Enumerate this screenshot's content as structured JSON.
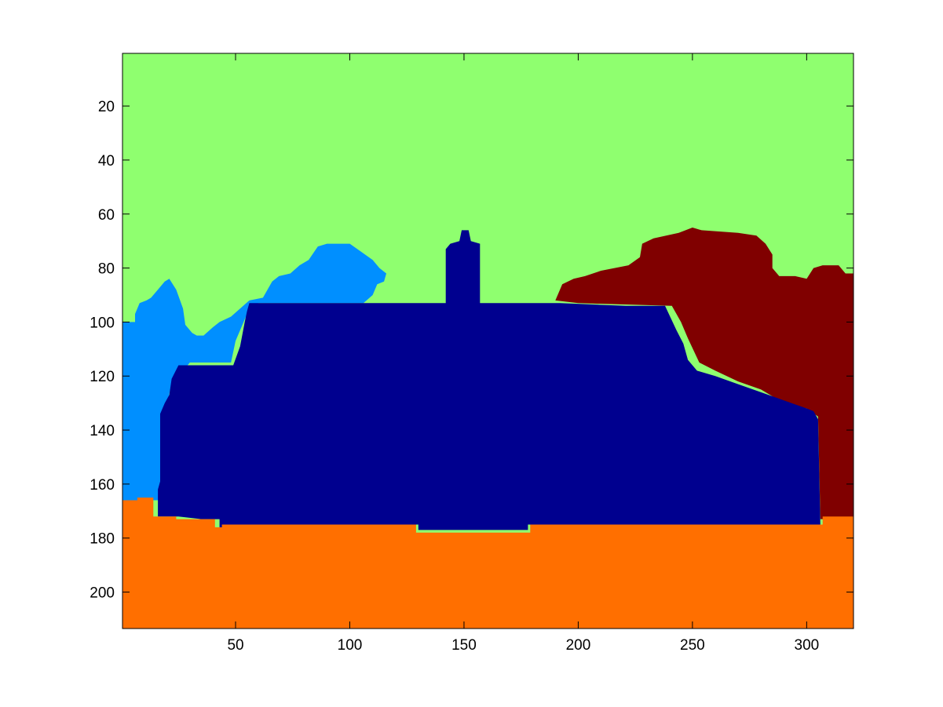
{
  "chart_data": {
    "type": "heatmap",
    "title": "",
    "xlabel": "",
    "ylabel": "",
    "xlim": [
      0.5,
      320.5
    ],
    "ylim": [
      0.5,
      213.5
    ],
    "y_reversed": true,
    "grid": false,
    "x_ticks": [
      50,
      100,
      150,
      200,
      250,
      300
    ],
    "y_ticks": [
      20,
      40,
      60,
      80,
      100,
      120,
      140,
      160,
      180,
      200
    ],
    "class_colors": {
      "sky": "#8FFF6F",
      "tree-left": "#008FFF",
      "building": "#00008F",
      "tree-right": "#800000",
      "ground": "#FF6F00"
    },
    "regions": [
      {
        "class": "sky",
        "polygon": [
          [
            0.5,
            0.5
          ],
          [
            320.5,
            0.5
          ],
          [
            320.5,
            213.5
          ],
          [
            0.5,
            213.5
          ]
        ]
      },
      {
        "class": "tree-left",
        "polygon": [
          [
            0.5,
            100
          ],
          [
            6,
            100
          ],
          [
            6,
            97
          ],
          [
            8,
            93
          ],
          [
            11,
            92
          ],
          [
            13,
            91
          ],
          [
            16,
            88
          ],
          [
            19,
            85
          ],
          [
            21,
            84
          ],
          [
            24,
            88
          ],
          [
            27,
            95
          ],
          [
            28,
            101
          ],
          [
            31,
            104
          ],
          [
            33,
            105
          ],
          [
            36,
            105
          ],
          [
            40,
            102
          ],
          [
            43,
            100
          ],
          [
            48,
            98
          ],
          [
            52,
            95
          ],
          [
            56,
            92
          ],
          [
            62,
            91
          ],
          [
            64,
            88
          ],
          [
            66,
            85
          ],
          [
            69,
            83
          ],
          [
            74,
            82
          ],
          [
            78,
            79
          ],
          [
            82,
            77
          ],
          [
            86,
            72
          ],
          [
            90,
            71
          ],
          [
            100,
            71
          ],
          [
            105,
            74
          ],
          [
            110,
            77
          ],
          [
            113,
            80
          ],
          [
            116,
            82
          ],
          [
            115,
            85
          ],
          [
            112,
            86
          ],
          [
            110,
            90
          ],
          [
            106,
            93
          ],
          [
            60,
            93
          ],
          [
            55,
            97
          ],
          [
            50,
            107
          ],
          [
            48,
            115
          ],
          [
            30,
            115
          ],
          [
            22,
            123
          ],
          [
            20,
            130
          ],
          [
            18,
            135
          ],
          [
            17,
            150
          ],
          [
            17,
            166
          ],
          [
            0.5,
            166
          ]
        ]
      },
      {
        "class": "tree-right",
        "polygon": [
          [
            190,
            92
          ],
          [
            193,
            86
          ],
          [
            198,
            84
          ],
          [
            203,
            83
          ],
          [
            210,
            81
          ],
          [
            222,
            79
          ],
          [
            227,
            76
          ],
          [
            228,
            71
          ],
          [
            233,
            69
          ],
          [
            244,
            67
          ],
          [
            250,
            65
          ],
          [
            254,
            66
          ],
          [
            270,
            67
          ],
          [
            278,
            68
          ],
          [
            282,
            71
          ],
          [
            285,
            75
          ],
          [
            285,
            80
          ],
          [
            288,
            83
          ],
          [
            295,
            83
          ],
          [
            300,
            84
          ],
          [
            303,
            80
          ],
          [
            307,
            79
          ],
          [
            314,
            79
          ],
          [
            317,
            82
          ],
          [
            320.5,
            82
          ],
          [
            320.5,
            173
          ],
          [
            306,
            173
          ],
          [
            305,
            135
          ],
          [
            300,
            132
          ],
          [
            290,
            130
          ],
          [
            280,
            125
          ],
          [
            270,
            122
          ],
          [
            260,
            118
          ],
          [
            253,
            115
          ],
          [
            248,
            106
          ],
          [
            245,
            100
          ],
          [
            241,
            94
          ],
          [
            200,
            93
          ]
        ]
      },
      {
        "class": "building",
        "polygon": [
          [
            56,
            93
          ],
          [
            142,
            93
          ],
          [
            142,
            73
          ],
          [
            144,
            71
          ],
          [
            148,
            70
          ],
          [
            149,
            66
          ],
          [
            152,
            66
          ],
          [
            153,
            70
          ],
          [
            157,
            71
          ],
          [
            157,
            93
          ],
          [
            192,
            93
          ],
          [
            221,
            94
          ],
          [
            238,
            94
          ],
          [
            243,
            103
          ],
          [
            246,
            108
          ],
          [
            248,
            114
          ],
          [
            252,
            118
          ],
          [
            260,
            120
          ],
          [
            270,
            123
          ],
          [
            280,
            126
          ],
          [
            290,
            129
          ],
          [
            300,
            132
          ],
          [
            303,
            133
          ],
          [
            305,
            136
          ],
          [
            306,
            175
          ],
          [
            178,
            175
          ],
          [
            178,
            177
          ],
          [
            130,
            177
          ],
          [
            130,
            175
          ],
          [
            46,
            175
          ],
          [
            46,
            177
          ],
          [
            43,
            177
          ],
          [
            43,
            173
          ],
          [
            35,
            173
          ],
          [
            25,
            172
          ],
          [
            16,
            172
          ],
          [
            16,
            162
          ],
          [
            17,
            159
          ],
          [
            17,
            134
          ],
          [
            19,
            130
          ],
          [
            21,
            127
          ],
          [
            22,
            121
          ],
          [
            25,
            116
          ],
          [
            49,
            116
          ],
          [
            52,
            109
          ],
          [
            54,
            100
          ],
          [
            55,
            96
          ]
        ]
      },
      {
        "class": "ground",
        "polygon": [
          [
            0.5,
            166
          ],
          [
            7,
            166
          ],
          [
            7,
            165
          ],
          [
            14,
            165
          ],
          [
            14,
            172
          ],
          [
            24,
            172
          ],
          [
            24,
            173
          ],
          [
            41,
            173
          ],
          [
            41,
            176
          ],
          [
            44,
            176
          ],
          [
            44,
            175
          ],
          [
            129,
            175
          ],
          [
            129,
            178
          ],
          [
            179,
            178
          ],
          [
            179,
            175
          ],
          [
            307,
            175
          ],
          [
            307,
            172
          ],
          [
            320.5,
            172
          ],
          [
            320.5,
            213.5
          ],
          [
            0.5,
            213.5
          ]
        ]
      }
    ]
  }
}
